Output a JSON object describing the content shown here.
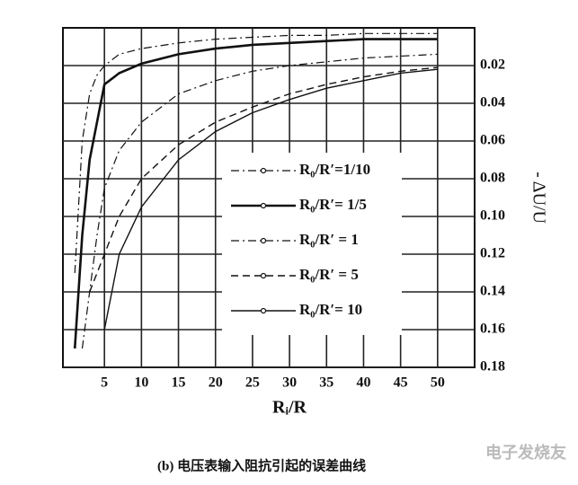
{
  "chart_data": {
    "type": "line",
    "x_label": "Rᵢ/R",
    "y_label": "- ΔU/U",
    "caption": "(b)    电压表输入阻抗引起的误差曲线",
    "watermark": "电子发烧友",
    "x": [
      1,
      2,
      3,
      4,
      5,
      7,
      10,
      15,
      20,
      25,
      30,
      35,
      40,
      45,
      50
    ],
    "series": [
      {
        "name": "R₀/R′=1/10",
        "color": "#111111",
        "line_style": "dashdot",
        "width": 1.2,
        "values": [
          0.13,
          0.06,
          0.035,
          0.025,
          0.02,
          0.014,
          0.011,
          0.008,
          0.006,
          0.005,
          0.004,
          0.004,
          0.003,
          0.003,
          0.003
        ]
      },
      {
        "name": "R₀/R′= 1/5",
        "color": "#111111",
        "line_style": "solid",
        "width": 2.6,
        "values": [
          0.17,
          0.11,
          0.07,
          0.05,
          0.03,
          0.024,
          0.019,
          0.014,
          0.011,
          0.009,
          0.008,
          0.007,
          0.006,
          0.006,
          0.006
        ]
      },
      {
        "name": "R₀/R′ = 1",
        "color": "#111111",
        "line_style": "dashdot",
        "width": 1.2,
        "values": [
          null,
          0.17,
          0.14,
          0.11,
          0.085,
          0.065,
          0.05,
          0.035,
          0.028,
          0.023,
          0.02,
          0.018,
          0.016,
          0.015,
          0.014
        ]
      },
      {
        "name": "R₀/R′ = 5",
        "color": "#111111",
        "line_style": "dashed",
        "width": 1.4,
        "values": [
          null,
          null,
          0.14,
          0.13,
          0.12,
          0.1,
          0.08,
          0.062,
          0.05,
          0.042,
          0.035,
          0.03,
          0.026,
          0.023,
          0.021
        ]
      },
      {
        "name": "R₀/R′= 10",
        "color": "#111111",
        "line_style": "solid",
        "width": 1.4,
        "values": [
          null,
          null,
          null,
          null,
          0.16,
          0.12,
          0.095,
          0.07,
          0.055,
          0.045,
          0.038,
          0.032,
          0.028,
          0.024,
          0.022
        ]
      }
    ],
    "xlim": [
      0,
      55
    ],
    "xticks": [
      5,
      10,
      15,
      20,
      25,
      30,
      35,
      40,
      45,
      50
    ],
    "ylim": [
      0,
      0.18
    ],
    "y_inverted": true,
    "y_axis_side": "right",
    "yticks": [
      0.02,
      0.04,
      0.06,
      0.08,
      {
        "value": 0.1,
        "label": "0.10"
      },
      0.12,
      0.14,
      0.16,
      0.18
    ],
    "grid": true
  }
}
